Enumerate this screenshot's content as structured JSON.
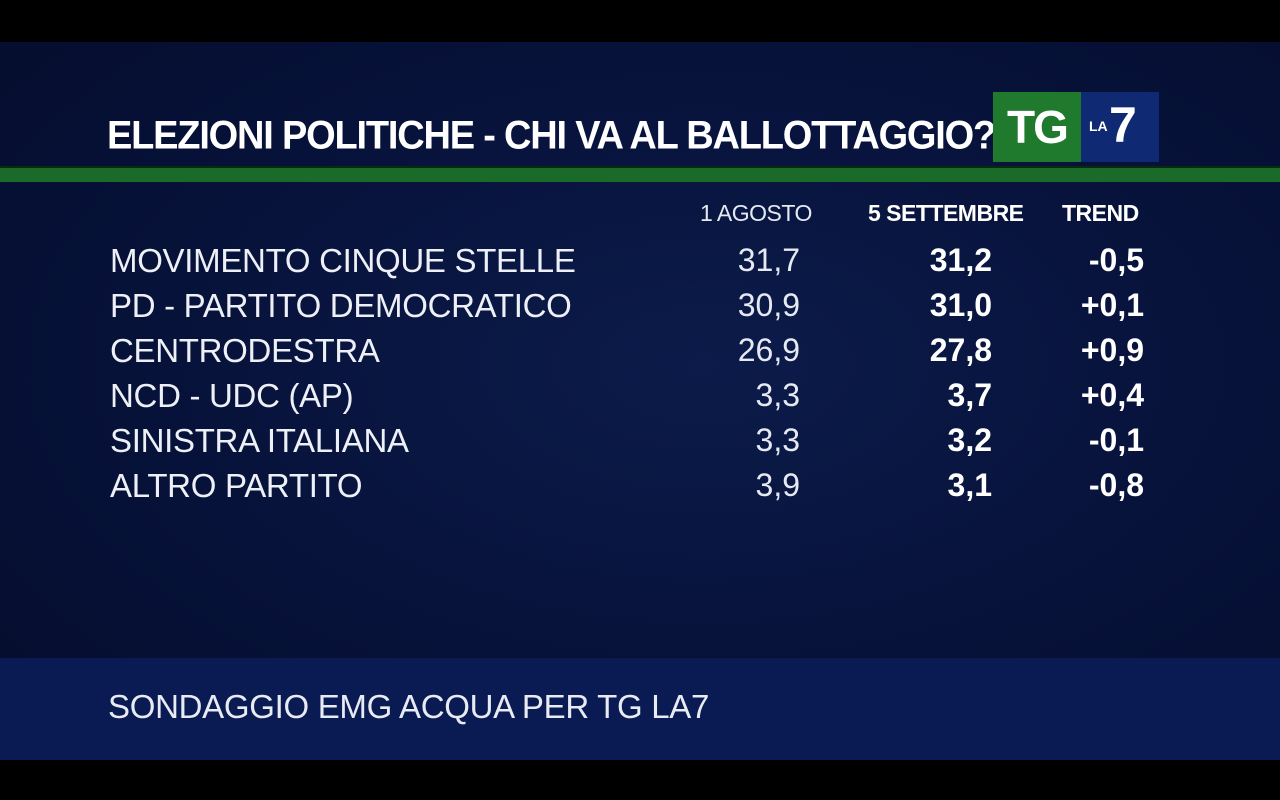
{
  "title": "ELEZIONI POLITICHE - CHI VA AL BALLOTTAGGIO?",
  "logo": {
    "tg": "TG",
    "la": "LA",
    "seven": "7"
  },
  "columns": {
    "col1": "1 AGOSTO",
    "col2": "5 SETTEMBRE",
    "col3": "TREND"
  },
  "rows": [
    {
      "party": "MOVIMENTO CINQUE STELLE",
      "v1": "31,7",
      "v2": "31,2",
      "trend": "-0,5"
    },
    {
      "party": "PD - PARTITO DEMOCRATICO",
      "v1": "30,9",
      "v2": "31,0",
      "trend": "+0,1"
    },
    {
      "party": "CENTRODESTRA",
      "v1": "26,9",
      "v2": "27,8",
      "trend": "+0,9"
    },
    {
      "party": "NCD - UDC (AP)",
      "v1": "3,3",
      "v2": "3,7",
      "trend": "+0,4"
    },
    {
      "party": "SINISTRA ITALIANA",
      "v1": "3,3",
      "v2": "3,2",
      "trend": "-0,1"
    },
    {
      "party": "ALTRO PARTITO",
      "v1": "3,9",
      "v2": "3,1",
      "trend": "-0,8"
    }
  ],
  "source": "SONDAGGIO EMG ACQUA PER TG LA7",
  "chart_data": {
    "type": "table",
    "title": "ELEZIONI POLITICHE - CHI VA AL BALLOTTAGGIO?",
    "columns": [
      "1 AGOSTO",
      "5 SETTEMBRE",
      "TREND"
    ],
    "categories": [
      "MOVIMENTO CINQUE STELLE",
      "PD - PARTITO DEMOCRATICO",
      "CENTRODESTRA",
      "NCD - UDC (AP)",
      "SINISTRA ITALIANA",
      "ALTRO PARTITO"
    ],
    "series": [
      {
        "name": "1 AGOSTO",
        "values": [
          31.7,
          30.9,
          26.9,
          3.3,
          3.3,
          3.9
        ]
      },
      {
        "name": "5 SETTEMBRE",
        "values": [
          31.2,
          31.0,
          27.8,
          3.7,
          3.2,
          3.1
        ]
      },
      {
        "name": "TREND",
        "values": [
          -0.5,
          0.1,
          0.9,
          0.4,
          -0.1,
          -0.8
        ]
      }
    ],
    "source": "SONDAGGIO EMG ACQUA PER TG LA7"
  }
}
